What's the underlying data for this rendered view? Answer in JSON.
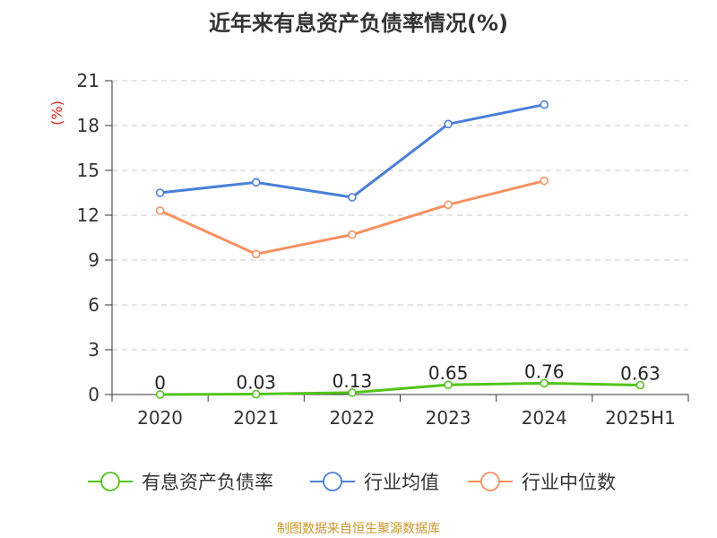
{
  "chart_data": {
    "type": "line",
    "title": "近年来有息资产负债率情况(%)",
    "ylabel": "(%)",
    "ylim": [
      0,
      21
    ],
    "yticks": [
      0,
      3,
      6,
      9,
      12,
      15,
      18,
      21
    ],
    "categories": [
      "2020",
      "2021",
      "2022",
      "2023",
      "2024",
      "2025H1"
    ],
    "grid": true,
    "legend_position": "bottom",
    "series": [
      {
        "name": "有息资产负债率",
        "color": "#52c41a",
        "values": [
          0,
          0.03,
          0.13,
          0.65,
          0.76,
          0.63
        ],
        "labels": [
          "0",
          "0.03",
          "0.13",
          "0.65",
          "0.76",
          "0.63"
        ]
      },
      {
        "name": "行业均值",
        "color": "#4a7fd8",
        "values": [
          13.5,
          14.2,
          13.2,
          18.1,
          19.4,
          null
        ]
      },
      {
        "name": "行业中位数",
        "color": "#f89060",
        "values": [
          12.3,
          9.4,
          10.7,
          12.7,
          14.3,
          null
        ]
      }
    ]
  },
  "footer": {
    "source": "制图数据来自恒生聚源数据库"
  }
}
